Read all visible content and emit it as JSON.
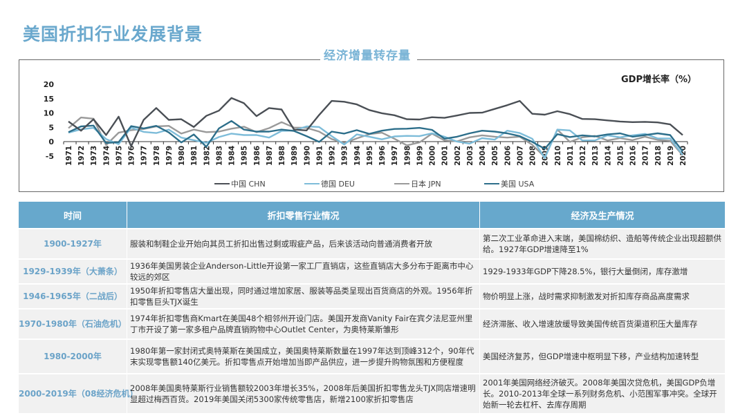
{
  "page": {
    "title": "美国折扣行业发展背景",
    "chart_subtitle": "经济增量转存量",
    "chart_ylabel": "GDP增长率（%）"
  },
  "chart_data": {
    "type": "line",
    "title": "GDP增长率（%）",
    "subtitle": "经济增量转存量",
    "xlabel": "",
    "ylabel": "GDP增长率（%）",
    "ylim": [
      -5,
      20
    ],
    "yticks": [
      20,
      15,
      10,
      5,
      0,
      -5
    ],
    "grid": false,
    "legend_position": "bottom",
    "x": [
      1971,
      1972,
      1973,
      1974,
      1975,
      1976,
      1977,
      1978,
      1979,
      1980,
      1981,
      1982,
      1983,
      1984,
      1985,
      1986,
      1987,
      1988,
      1989,
      1990,
      1991,
      1992,
      1993,
      1994,
      1995,
      1996,
      1997,
      1998,
      1999,
      2000,
      2001,
      2002,
      2003,
      2004,
      2005,
      2006,
      2007,
      2008,
      2009,
      2010,
      2011,
      2012,
      2013,
      2014,
      2015,
      2016,
      2017,
      2018,
      2019,
      2020
    ],
    "series": [
      {
        "name": "中国 CHN",
        "color": "#4a4f55",
        "values": [
          7.0,
          3.8,
          7.8,
          2.3,
          8.7,
          -1.6,
          7.6,
          11.7,
          7.6,
          7.8,
          5.1,
          9.0,
          10.8,
          15.2,
          13.4,
          8.9,
          11.7,
          11.2,
          4.2,
          3.9,
          9.3,
          14.2,
          13.9,
          13.0,
          11.0,
          9.9,
          9.2,
          7.8,
          7.7,
          8.5,
          8.3,
          9.1,
          10.0,
          10.1,
          11.4,
          12.7,
          14.2,
          9.7,
          9.4,
          10.6,
          9.6,
          7.9,
          7.8,
          7.4,
          7.0,
          6.8,
          6.9,
          6.7,
          6.0,
          2.3
        ]
      },
      {
        "name": "德国 DEU",
        "color": "#7dbcd9",
        "values": [
          3.1,
          4.3,
          4.8,
          0.9,
          -0.9,
          4.9,
          3.4,
          3.0,
          4.2,
          1.4,
          0.5,
          -0.4,
          1.6,
          2.8,
          2.3,
          2.3,
          1.4,
          3.7,
          3.9,
          5.3,
          5.1,
          1.9,
          -1.0,
          2.5,
          1.7,
          0.8,
          1.8,
          2.0,
          1.9,
          2.9,
          1.7,
          0.0,
          -0.7,
          1.2,
          0.7,
          3.8,
          3.0,
          1.0,
          -5.7,
          4.2,
          3.9,
          0.4,
          0.4,
          2.2,
          1.5,
          2.2,
          2.7,
          1.1,
          1.1,
          -4.6
        ]
      },
      {
        "name": "日本 JPN",
        "color": "#9a9a9a",
        "values": [
          4.7,
          8.4,
          8.0,
          -1.2,
          3.1,
          4.0,
          4.4,
          5.3,
          5.5,
          2.8,
          4.2,
          3.3,
          3.5,
          4.5,
          5.2,
          3.3,
          4.7,
          6.8,
          4.9,
          4.8,
          3.5,
          0.9,
          -0.5,
          1.1,
          2.6,
          3.1,
          1.0,
          -1.3,
          -0.3,
          2.8,
          0.4,
          0.1,
          1.5,
          2.2,
          1.7,
          1.4,
          1.7,
          -1.1,
          -5.4,
          4.2,
          -0.1,
          1.5,
          2.0,
          0.4,
          1.2,
          0.5,
          1.7,
          0.6,
          0.3,
          -4.8
        ]
      },
      {
        "name": "美国 USA",
        "color": "#2c6e8a",
        "values": [
          3.3,
          5.3,
          5.6,
          -0.5,
          -0.2,
          5.4,
          4.6,
          5.5,
          3.2,
          -0.3,
          2.5,
          -1.8,
          4.6,
          7.2,
          4.2,
          3.5,
          3.5,
          4.2,
          3.7,
          1.9,
          -0.1,
          3.5,
          2.8,
          4.0,
          2.7,
          3.8,
          4.4,
          4.5,
          4.8,
          4.1,
          1.0,
          1.7,
          2.9,
          3.8,
          3.5,
          2.9,
          1.9,
          -0.1,
          -2.5,
          2.6,
          1.6,
          2.2,
          1.8,
          2.5,
          2.9,
          1.7,
          2.3,
          2.9,
          2.3,
          -3.4
        ]
      }
    ]
  },
  "legend": {
    "items": [
      {
        "label": "中国 CHN",
        "color": "#4a4f55"
      },
      {
        "label": "德国 DEU",
        "color": "#7dbcd9"
      },
      {
        "label": "日本 JPN",
        "color": "#9a9a9a"
      },
      {
        "label": "美国 USA",
        "color": "#2c6e8a"
      }
    ]
  },
  "table": {
    "headers": [
      "时间",
      "折扣零售行业情况",
      "经济及生产情况"
    ],
    "rows": [
      {
        "period": "1900-1927年",
        "retail": "服装和制鞋企业开始向其员工折扣出售过剩或瑕疵产品，后来该活动向普通消费者开放",
        "economy": "第二次工业革命进入末端，美国棉纺织、造船等传统企业出现超额供给。1927年GDP增速降至1%"
      },
      {
        "period": "1929-1939年（大萧条）",
        "retail": "1936年美国男装企业Anderson-Little开设第一家工厂直销店，这些直销店大多分布于距离市中心较远的郊区",
        "economy": "1929-1933年GDP下降28.5%，银行大量倒闭，库存激增"
      },
      {
        "period": "1946-1965年（二战后）",
        "retail": "1950年折扣零售店大量出现，同时通过增加家居、服装等品类呈现出百货商店的外观。1956年折扣零售巨头TJX诞生",
        "economy": "物价明显上涨，战时需求抑制激发对折扣库存商品高度需求"
      },
      {
        "period": "1970-1980年（石油危机）",
        "retail": "1974年折扣零售商Kmart在美国48个相邻州开设门店。美国开发商Vanity Fair在宾夕法尼亚州里丁市开设了第一家多租户品牌直销购物中心Outlet Center，为奥特莱斯雏形",
        "economy": "经济滞胀、收入增速放缓导致美国传统百货渠道积压大量库存"
      },
      {
        "period": "1980-2000年",
        "retail": "1980年第一家封闭式奥特莱斯在美国成立，美国奥特莱斯数量在1997年达到顶峰312个，90年代末实现零售额140亿美元。折扣零售点开始增加当即产品供应，进一步提升购物氛围和方便程度",
        "economy": "美国经济复苏，但GDP增速中枢明显下移，产业结构加速转型"
      },
      {
        "period": "2000-2019年（08经济危机）",
        "retail": "2008年美国奥特莱斯行业销售额较2003年增长35%，2008年后美国折扣零售龙头TJX同店增速明显超过梅西百货。2019年美国关闭5300家传统零售店，新增2100家折扣零售店",
        "economy": "2001年美国网络经济破灭。2008年美国次贷危机，美国GDP负增长。2010-2013年全球一系列财务危机、小范围军事冲突。全球开始新一轮去杠杆、去库存周期"
      }
    ]
  }
}
